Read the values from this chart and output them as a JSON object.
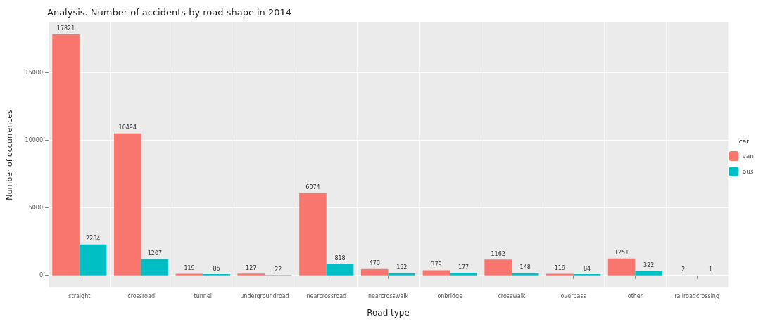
{
  "chart_data": {
    "type": "bar",
    "title": "Analysis. Number of accidents by road shape in 2014",
    "xlabel": "Road type",
    "ylabel": "Number of occurrences",
    "legend_title": "car",
    "categories": [
      "straight",
      "crossroad",
      "tunnel",
      "undergroundroad",
      "nearcrossroad",
      "nearcrosswalk",
      "onbridge",
      "crosswalk",
      "overpass",
      "other",
      "railroadcrossing"
    ],
    "series": [
      {
        "name": "van",
        "color": "#f8766d",
        "values": [
          17821,
          10494,
          119,
          127,
          6074,
          470,
          379,
          1162,
          119,
          1251,
          2
        ]
      },
      {
        "name": "bus",
        "color": "#00bfc4",
        "values": [
          2284,
          1207,
          86,
          22,
          818,
          152,
          177,
          148,
          84,
          322,
          1
        ]
      }
    ],
    "ylim": [
      -900,
      18700
    ],
    "yticks": [
      0,
      5000,
      10000,
      15000
    ],
    "grid": true,
    "legend": "right",
    "data_labels": true
  }
}
